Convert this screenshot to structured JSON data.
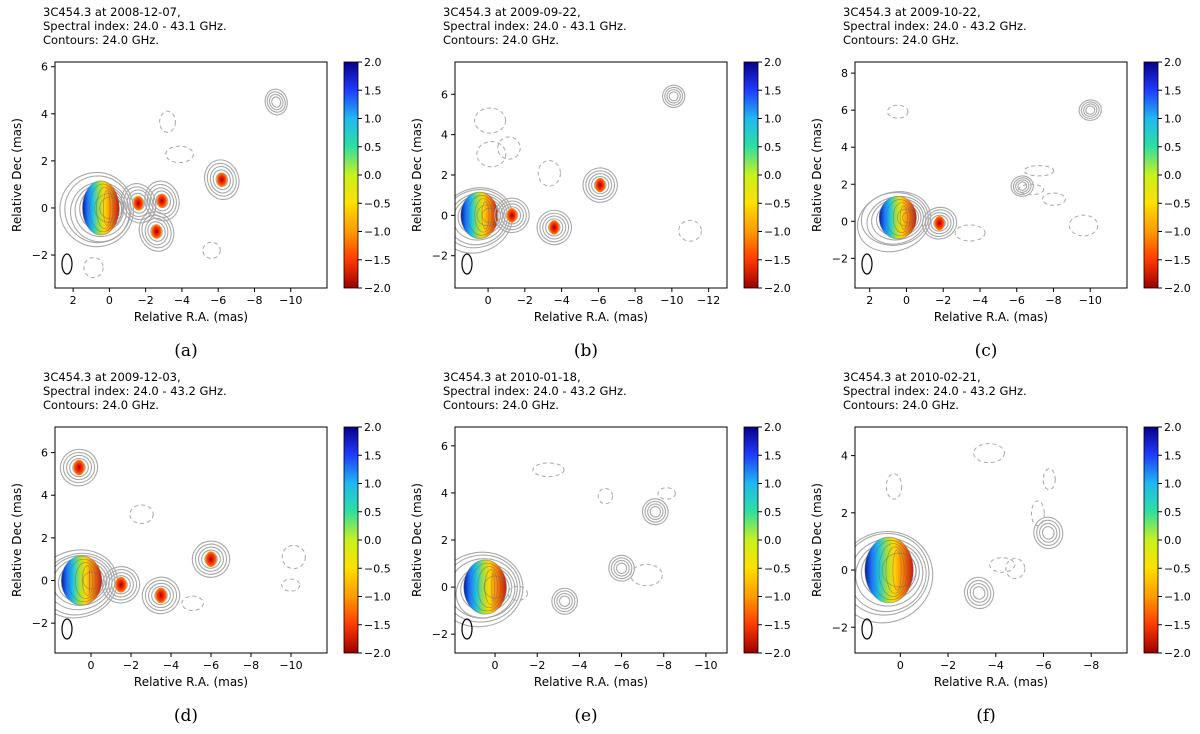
{
  "figure": {
    "xlabel": "Relative R.A. (mas)",
    "ylabel": "Relative Dec (mas)"
  },
  "colorbar": {
    "ticks": [
      "2.0",
      "1.5",
      "1.0",
      "0.5",
      "0.0",
      "−0.5",
      "−1.0",
      "−1.5",
      "−2.0"
    ],
    "colors": [
      "#08008a",
      "#1f3cff",
      "#20b8f0",
      "#2ee0a0",
      "#c8f020",
      "#ffe000",
      "#ff9a00",
      "#ff3a00",
      "#9a0000"
    ]
  },
  "chart_data": [
    {
      "type": "heatmap",
      "label": "(a)",
      "title": [
        "3C454.3 at 2008-12-07,",
        "Spectral index: 24.0 - 43.1 GHz.",
        "Contours: 24.0 GHz."
      ],
      "xlabel": "Relative R.A. (mas)",
      "ylabel": "Relative Dec (mas)",
      "xlim": [
        3,
        -12
      ],
      "ylim": [
        -3.4,
        6.2
      ],
      "xticks": [
        2,
        0,
        -2,
        -4,
        -6,
        -8,
        -10
      ],
      "yticks": [
        -2,
        0,
        2,
        4,
        6
      ],
      "colorbar": {
        "min": -2.0,
        "max": 2.0
      },
      "features": [
        {
          "x": 0.0,
          "y": 0.0,
          "kind": "core"
        },
        {
          "x": -1.6,
          "y": 0.2,
          "kind": "knot"
        },
        {
          "x": -2.9,
          "y": 0.3,
          "kind": "knot"
        },
        {
          "x": -2.6,
          "y": -1.0,
          "kind": "knot"
        },
        {
          "x": -6.2,
          "y": 1.2,
          "kind": "knot"
        },
        {
          "x": -9.2,
          "y": 4.5,
          "kind": "contour"
        }
      ]
    },
    {
      "type": "heatmap",
      "label": "(b)",
      "title": [
        "3C454.3 at 2009-09-22,",
        "Spectral index: 24.0 - 43.1 GHz.",
        "Contours: 24.0 GHz."
      ],
      "xlabel": "Relative R.A. (mas)",
      "ylabel": "Relative Dec (mas)",
      "xlim": [
        1.8,
        -13
      ],
      "ylim": [
        -3.6,
        7.6
      ],
      "xticks": [
        0,
        -2,
        -4,
        -6,
        -8,
        -10,
        -12
      ],
      "yticks": [
        -2,
        0,
        2,
        4,
        6
      ],
      "colorbar": {
        "min": -2.0,
        "max": 2.0
      },
      "features": [
        {
          "x": 0.0,
          "y": 0.0,
          "kind": "core"
        },
        {
          "x": -1.3,
          "y": 0.0,
          "kind": "knot"
        },
        {
          "x": -3.6,
          "y": -0.6,
          "kind": "knot"
        },
        {
          "x": -6.1,
          "y": 1.5,
          "kind": "knot"
        },
        {
          "x": -10.1,
          "y": 5.9,
          "kind": "contour"
        }
      ]
    },
    {
      "type": "heatmap",
      "label": "(c)",
      "title": [
        "3C454.3 at 2009-10-22,",
        "Spectral index: 24.0 - 43.2 GHz.",
        "Contours: 24.0 GHz."
      ],
      "xlabel": "Relative R.A. (mas)",
      "ylabel": "Relative Dec (mas)",
      "xlim": [
        2.8,
        -12
      ],
      "ylim": [
        -3.6,
        8.6
      ],
      "xticks": [
        2,
        0,
        -2,
        -4,
        -6,
        -8,
        -10
      ],
      "yticks": [
        -2,
        0,
        2,
        4,
        6,
        8
      ],
      "colorbar": {
        "min": -2.0,
        "max": 2.0
      },
      "features": [
        {
          "x": 0.0,
          "y": 0.2,
          "kind": "core"
        },
        {
          "x": -1.8,
          "y": -0.1,
          "kind": "knot"
        },
        {
          "x": -6.3,
          "y": 1.9,
          "kind": "contour"
        },
        {
          "x": -10.0,
          "y": 6.0,
          "kind": "contour"
        }
      ]
    },
    {
      "type": "heatmap",
      "label": "(d)",
      "title": [
        "3C454.3 at 2009-12-03,",
        "Spectral index: 24.0 - 43.2 GHz.",
        "Contours: 24.0 GHz."
      ],
      "xlabel": "Relative R.A. (mas)",
      "ylabel": "Relative Dec (mas)",
      "xlim": [
        1.8,
        -11.8
      ],
      "ylim": [
        -3.4,
        7.2
      ],
      "xticks": [
        0,
        -2,
        -4,
        -6,
        -8,
        -10
      ],
      "yticks": [
        -2,
        0,
        2,
        4,
        6
      ],
      "colorbar": {
        "min": -2.0,
        "max": 2.0
      },
      "features": [
        {
          "x": 0.0,
          "y": 0.0,
          "kind": "core"
        },
        {
          "x": -1.5,
          "y": -0.2,
          "kind": "knot"
        },
        {
          "x": -3.5,
          "y": -0.7,
          "kind": "knot"
        },
        {
          "x": -6.0,
          "y": 1.0,
          "kind": "knot"
        },
        {
          "x": 0.6,
          "y": 5.3,
          "kind": "knot"
        }
      ]
    },
    {
      "type": "heatmap",
      "label": "(e)",
      "title": [
        "3C454.3 at 2010-01-18,",
        "Spectral index: 24.0 - 43.2 GHz.",
        "Contours: 24.0 GHz."
      ],
      "xlabel": "Relative R.A. (mas)",
      "ylabel": "Relative Dec (mas)",
      "xlim": [
        1.9,
        -11.0
      ],
      "ylim": [
        -2.8,
        6.8
      ],
      "xticks": [
        0,
        -2,
        -4,
        -6,
        -8,
        -10
      ],
      "yticks": [
        -2,
        0,
        2,
        4,
        6
      ],
      "colorbar": {
        "min": -2.0,
        "max": 2.0
      },
      "features": [
        {
          "x": 0.0,
          "y": 0.0,
          "kind": "core"
        },
        {
          "x": -3.3,
          "y": -0.6,
          "kind": "contour"
        },
        {
          "x": -6.0,
          "y": 0.8,
          "kind": "contour"
        },
        {
          "x": -7.6,
          "y": 3.2,
          "kind": "contour"
        }
      ]
    },
    {
      "type": "heatmap",
      "label": "(f)",
      "title": [
        "3C454.3 at 2010-02-21,",
        "Spectral index: 24.0 - 43.2 GHz.",
        "Contours: 24.0 GHz."
      ],
      "xlabel": "Relative R.A. (mas)",
      "ylabel": "Relative Dec (mas)",
      "xlim": [
        1.9,
        -9.5
      ],
      "ylim": [
        -2.9,
        5.0
      ],
      "xticks": [
        0,
        -2,
        -4,
        -6,
        -8
      ],
      "yticks": [
        -2,
        0,
        2,
        4
      ],
      "colorbar": {
        "min": -2.0,
        "max": 2.0
      },
      "features": [
        {
          "x": 0.0,
          "y": 0.0,
          "kind": "core"
        },
        {
          "x": -3.3,
          "y": -0.8,
          "kind": "contour"
        },
        {
          "x": -6.2,
          "y": 1.3,
          "kind": "contour"
        }
      ]
    }
  ]
}
